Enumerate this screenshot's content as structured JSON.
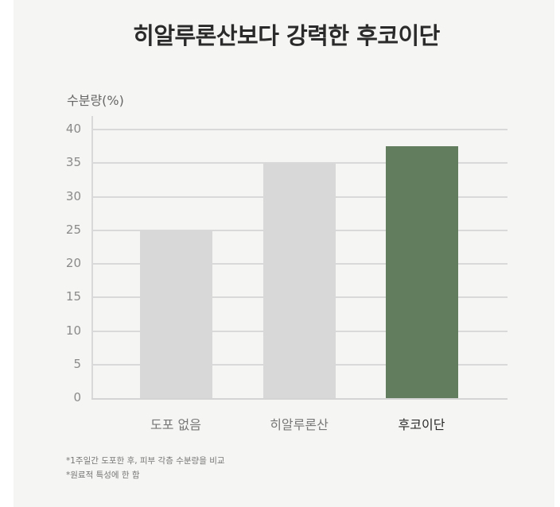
{
  "header": {
    "title": "히알루론산보다 강력한 후코이단"
  },
  "axis": {
    "ylabel": "수분량(%)",
    "ticks": [
      "40",
      "35",
      "30",
      "25",
      "20",
      "15",
      "10",
      "5",
      "0"
    ]
  },
  "categories": [
    {
      "label": "도포 없음",
      "value": 25,
      "color": "#d8d8d8",
      "highlight": false
    },
    {
      "label": "히알루론산",
      "value": 35,
      "color": "#d8d8d8",
      "highlight": false
    },
    {
      "label": "후코이단",
      "value": 37.5,
      "color": "#627c5e",
      "highlight": true
    }
  ],
  "footnotes": [
    "*1주일간 도포한 후, 피부 각층 수분량을 비교",
    "*원료적 특성에 한 함"
  ],
  "chart_data": {
    "type": "bar",
    "title": "히알루론산보다 강력한 후코이단",
    "xlabel": "",
    "ylabel": "수분량(%)",
    "categories": [
      "도포 없음",
      "히알루론산",
      "후코이단"
    ],
    "values": [
      25,
      35,
      37.5
    ],
    "colors": [
      "#d8d8d8",
      "#d8d8d8",
      "#627c5e"
    ],
    "ylim": [
      0,
      40
    ],
    "yticks": [
      0,
      5,
      10,
      15,
      20,
      25,
      30,
      35,
      40
    ],
    "grid": true,
    "legend": "none",
    "annotations": [
      "*1주일간 도포한 후, 피부 각층 수분량을 비교",
      "*원료적 특성에 한 함"
    ]
  }
}
